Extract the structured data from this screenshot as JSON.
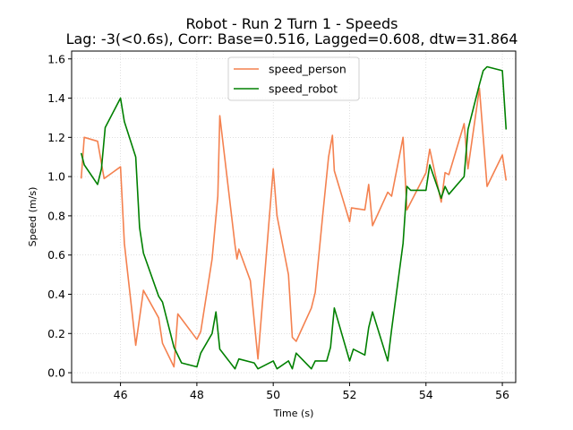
{
  "chart_data": {
    "type": "line",
    "title": "Robot - Run 2 Turn 1 - Speeds",
    "subtitle": "Lag: -3(<0.6s), Corr: Base=0.516, Lagged=0.608, dtw=31.864",
    "xlabel": "Time (s)",
    "ylabel": "Speed (m/s)",
    "xlim": [
      44.72,
      56.35
    ],
    "ylim": [
      -0.05,
      1.64
    ],
    "xticks": [
      46,
      48,
      50,
      52,
      54,
      56
    ],
    "yticks": [
      0.0,
      0.2,
      0.4,
      0.6,
      0.8,
      1.0,
      1.2,
      1.4,
      1.6
    ],
    "xtick_labels": [
      "46",
      "48",
      "50",
      "52",
      "54",
      "56"
    ],
    "ytick_labels": [
      "0.0",
      "0.2",
      "0.4",
      "0.6",
      "0.8",
      "1.0",
      "1.2",
      "1.4",
      "1.6"
    ],
    "grid": true,
    "legend_position": "upper center",
    "series": [
      {
        "name": "speed_person",
        "color": "#f4814f",
        "x": [
          44.97,
          45.05,
          45.4,
          45.57,
          46.0,
          46.1,
          46.4,
          46.6,
          47.0,
          47.1,
          47.4,
          47.5,
          48.0,
          48.1,
          48.4,
          48.55,
          48.6,
          49.0,
          49.05,
          49.1,
          49.4,
          49.6,
          50.0,
          50.1,
          50.4,
          50.5,
          50.6,
          51.0,
          51.1,
          51.3,
          51.45,
          51.55,
          51.6,
          52.0,
          52.05,
          52.4,
          52.5,
          52.6,
          53.0,
          53.1,
          53.4,
          53.5,
          54.0,
          54.1,
          54.4,
          54.5,
          54.6,
          55.0,
          55.1,
          55.4,
          55.6,
          56.0,
          56.1
        ],
        "y": [
          0.99,
          1.2,
          1.18,
          0.99,
          1.05,
          0.66,
          0.14,
          0.42,
          0.28,
          0.15,
          0.03,
          0.3,
          0.17,
          0.21,
          0.58,
          0.9,
          1.31,
          0.65,
          0.58,
          0.63,
          0.47,
          0.07,
          1.04,
          0.8,
          0.5,
          0.18,
          0.16,
          0.33,
          0.41,
          0.81,
          1.1,
          1.21,
          1.03,
          0.77,
          0.84,
          0.83,
          0.96,
          0.75,
          0.92,
          0.9,
          1.2,
          0.83,
          1.02,
          1.14,
          0.87,
          1.02,
          1.01,
          1.27,
          1.04,
          1.45,
          0.95,
          1.11,
          0.98
        ]
      },
      {
        "name": "speed_robot",
        "color": "#008000",
        "x": [
          44.97,
          45.05,
          45.4,
          45.5,
          45.6,
          46.0,
          46.1,
          46.4,
          46.5,
          46.6,
          47.0,
          47.1,
          47.4,
          47.6,
          48.0,
          48.1,
          48.4,
          48.5,
          48.6,
          49.0,
          49.1,
          49.5,
          49.6,
          50.0,
          50.1,
          50.4,
          50.5,
          50.6,
          51.0,
          51.1,
          51.4,
          51.5,
          51.6,
          52.0,
          52.1,
          52.4,
          52.5,
          52.6,
          53.0,
          53.1,
          53.4,
          53.5,
          53.6,
          54.0,
          54.1,
          54.4,
          54.5,
          54.6,
          55.0,
          55.1,
          55.4,
          55.5,
          55.6,
          56.0,
          56.1
        ],
        "y": [
          1.12,
          1.06,
          0.96,
          1.04,
          1.25,
          1.4,
          1.28,
          1.1,
          0.74,
          0.61,
          0.39,
          0.36,
          0.13,
          0.05,
          0.03,
          0.1,
          0.2,
          0.31,
          0.12,
          0.02,
          0.07,
          0.05,
          0.02,
          0.06,
          0.02,
          0.06,
          0.02,
          0.1,
          0.02,
          0.06,
          0.06,
          0.13,
          0.33,
          0.06,
          0.12,
          0.09,
          0.23,
          0.31,
          0.06,
          0.22,
          0.66,
          0.95,
          0.93,
          0.93,
          1.06,
          0.89,
          0.95,
          0.91,
          1.0,
          1.24,
          1.47,
          1.54,
          1.56,
          1.54,
          1.24
        ]
      }
    ]
  }
}
